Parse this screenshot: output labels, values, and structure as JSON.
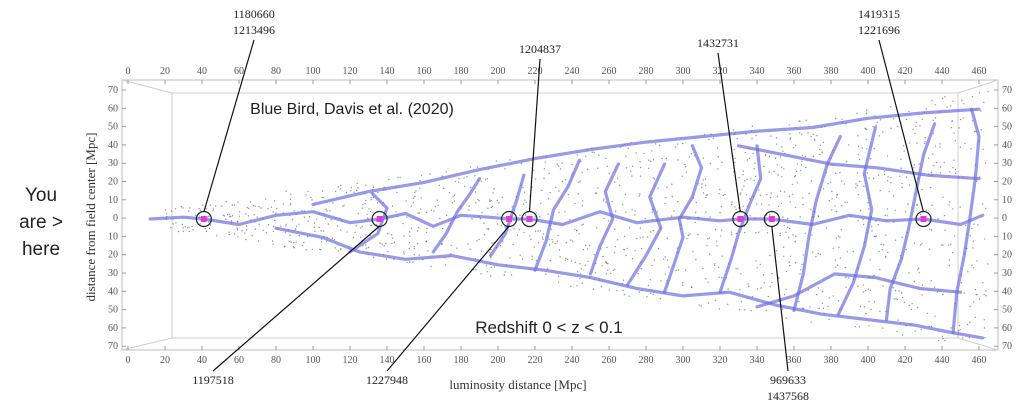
{
  "side_note": [
    "You",
    "are >",
    "here"
  ],
  "chart_data": {
    "type": "scatter",
    "title": "Blue Bird, Davis et al. (2020)",
    "subtitle": "Redshift 0 < z < 0.1",
    "xlabel": "luminosity distance [Mpc]",
    "ylabel": "distance from field center [Mpc]",
    "xlim": [
      0,
      470
    ],
    "ylim": [
      -70,
      70
    ],
    "x_ticks": [
      0,
      20,
      40,
      60,
      80,
      100,
      120,
      140,
      160,
      180,
      200,
      220,
      240,
      260,
      280,
      300,
      320,
      340,
      360,
      380,
      400,
      420,
      440,
      460
    ],
    "y_ticks_left": [
      "70",
      "60",
      "50",
      "40",
      "30",
      "20",
      "10",
      "0",
      "10",
      "20",
      "30",
      "40",
      "50",
      "60",
      "70"
    ],
    "y_ticks_right": [
      "70",
      "60",
      "50",
      "40",
      "30",
      "20",
      "10",
      "0",
      "10",
      "20",
      "30",
      "40",
      "50",
      "60",
      "70"
    ],
    "colors": {
      "filament": "#6b6fe0",
      "galaxy": "#333333",
      "target": "#e23ad6",
      "frame": "#bbbbbb"
    },
    "targets": [
      {
        "x": 41,
        "y": 0,
        "labels": [
          "1180660",
          "1213496"
        ],
        "label_side": "top"
      },
      {
        "x": 136,
        "y": 0,
        "labels": [
          "1197518"
        ],
        "label_side": "bottom"
      },
      {
        "x": 206,
        "y": 0,
        "labels": [
          "1227948"
        ],
        "label_side": "bottom"
      },
      {
        "x": 217,
        "y": 0,
        "labels": [
          "1204837"
        ],
        "label_side": "top"
      },
      {
        "x": 331,
        "y": 0,
        "labels": [
          "1432731"
        ],
        "label_side": "top"
      },
      {
        "x": 348,
        "y": 0,
        "labels": [
          "969633",
          "1437568"
        ],
        "label_side": "bottom"
      },
      {
        "x": 430,
        "y": 0,
        "labels": [
          "1419315",
          "1221696"
        ],
        "label_side": "top"
      }
    ],
    "filaments": [
      [
        [
          12,
          0
        ],
        [
          30,
          1
        ],
        [
          41,
          0
        ],
        [
          60,
          -3
        ],
        [
          80,
          2
        ],
        [
          100,
          4
        ],
        [
          120,
          -2
        ],
        [
          136,
          0
        ]
      ],
      [
        [
          136,
          0
        ],
        [
          150,
          3
        ],
        [
          165,
          -4
        ],
        [
          180,
          2
        ],
        [
          195,
          1
        ],
        [
          206,
          0
        ]
      ],
      [
        [
          206,
          0
        ],
        [
          217,
          0
        ],
        [
          235,
          -3
        ],
        [
          255,
          4
        ],
        [
          275,
          -2
        ],
        [
          300,
          1
        ],
        [
          320,
          -1
        ],
        [
          331,
          0
        ],
        [
          348,
          0
        ],
        [
          370,
          -3
        ],
        [
          390,
          2
        ],
        [
          410,
          -1
        ],
        [
          430,
          0
        ],
        [
          450,
          -3
        ],
        [
          462,
          2
        ]
      ],
      [
        [
          80,
          -5
        ],
        [
          105,
          -10
        ],
        [
          125,
          -18
        ],
        [
          150,
          -22
        ],
        [
          175,
          -20
        ],
        [
          200,
          -25
        ],
        [
          225,
          -28
        ],
        [
          250,
          -32
        ],
        [
          275,
          -38
        ],
        [
          300,
          -42
        ],
        [
          325,
          -40
        ],
        [
          350,
          -47
        ],
        [
          375,
          -52
        ],
        [
          400,
          -55
        ],
        [
          425,
          -58
        ],
        [
          445,
          -62
        ],
        [
          462,
          -65
        ]
      ],
      [
        [
          100,
          8
        ],
        [
          130,
          15
        ],
        [
          160,
          20
        ],
        [
          190,
          27
        ],
        [
          220,
          33
        ],
        [
          250,
          38
        ],
        [
          280,
          42
        ],
        [
          310,
          45
        ],
        [
          340,
          48
        ],
        [
          370,
          50
        ],
        [
          400,
          55
        ],
        [
          430,
          58
        ],
        [
          460,
          60
        ]
      ],
      [
        [
          290,
          -40
        ],
        [
          295,
          -25
        ],
        [
          300,
          -10
        ],
        [
          298,
          0
        ],
        [
          305,
          12
        ],
        [
          310,
          28
        ],
        [
          305,
          40
        ]
      ],
      [
        [
          250,
          -30
        ],
        [
          255,
          -15
        ],
        [
          262,
          0
        ],
        [
          258,
          15
        ],
        [
          265,
          30
        ]
      ],
      [
        [
          360,
          -50
        ],
        [
          365,
          -30
        ],
        [
          368,
          -10
        ],
        [
          372,
          10
        ],
        [
          378,
          30
        ],
        [
          385,
          45
        ]
      ],
      [
        [
          410,
          -55
        ],
        [
          412,
          -38
        ],
        [
          418,
          -22
        ],
        [
          422,
          -5
        ],
        [
          426,
          15
        ],
        [
          430,
          35
        ],
        [
          436,
          52
        ]
      ],
      [
        [
          446,
          -62
        ],
        [
          448,
          -40
        ],
        [
          452,
          -20
        ],
        [
          455,
          0
        ],
        [
          458,
          22
        ],
        [
          460,
          45
        ],
        [
          456,
          60
        ]
      ],
      [
        [
          165,
          -18
        ],
        [
          172,
          -8
        ],
        [
          178,
          4
        ],
        [
          185,
          14
        ],
        [
          190,
          22
        ]
      ],
      [
        [
          220,
          -28
        ],
        [
          226,
          -12
        ],
        [
          230,
          5
        ],
        [
          238,
          18
        ],
        [
          244,
          32
        ]
      ],
      [
        [
          320,
          -40
        ],
        [
          326,
          -22
        ],
        [
          330,
          -8
        ],
        [
          336,
          8
        ],
        [
          342,
          22
        ],
        [
          340,
          40
        ]
      ],
      [
        [
          384,
          -52
        ],
        [
          392,
          -35
        ],
        [
          398,
          -15
        ],
        [
          402,
          5
        ],
        [
          398,
          25
        ],
        [
          404,
          50
        ]
      ],
      [
        [
          340,
          -48
        ],
        [
          360,
          -42
        ],
        [
          382,
          -30
        ],
        [
          404,
          -32
        ],
        [
          428,
          -38
        ],
        [
          450,
          -40
        ]
      ],
      [
        [
          330,
          40
        ],
        [
          355,
          35
        ],
        [
          380,
          30
        ],
        [
          405,
          28
        ],
        [
          432,
          24
        ],
        [
          460,
          22
        ]
      ],
      [
        [
          120,
          -18
        ],
        [
          135,
          -8
        ],
        [
          140,
          6
        ],
        [
          132,
          14
        ]
      ],
      [
        [
          196,
          -20
        ],
        [
          204,
          -8
        ],
        [
          210,
          10
        ],
        [
          214,
          24
        ]
      ],
      [
        [
          270,
          -36
        ],
        [
          280,
          -20
        ],
        [
          288,
          -5
        ],
        [
          282,
          12
        ],
        [
          290,
          30
        ]
      ]
    ]
  }
}
